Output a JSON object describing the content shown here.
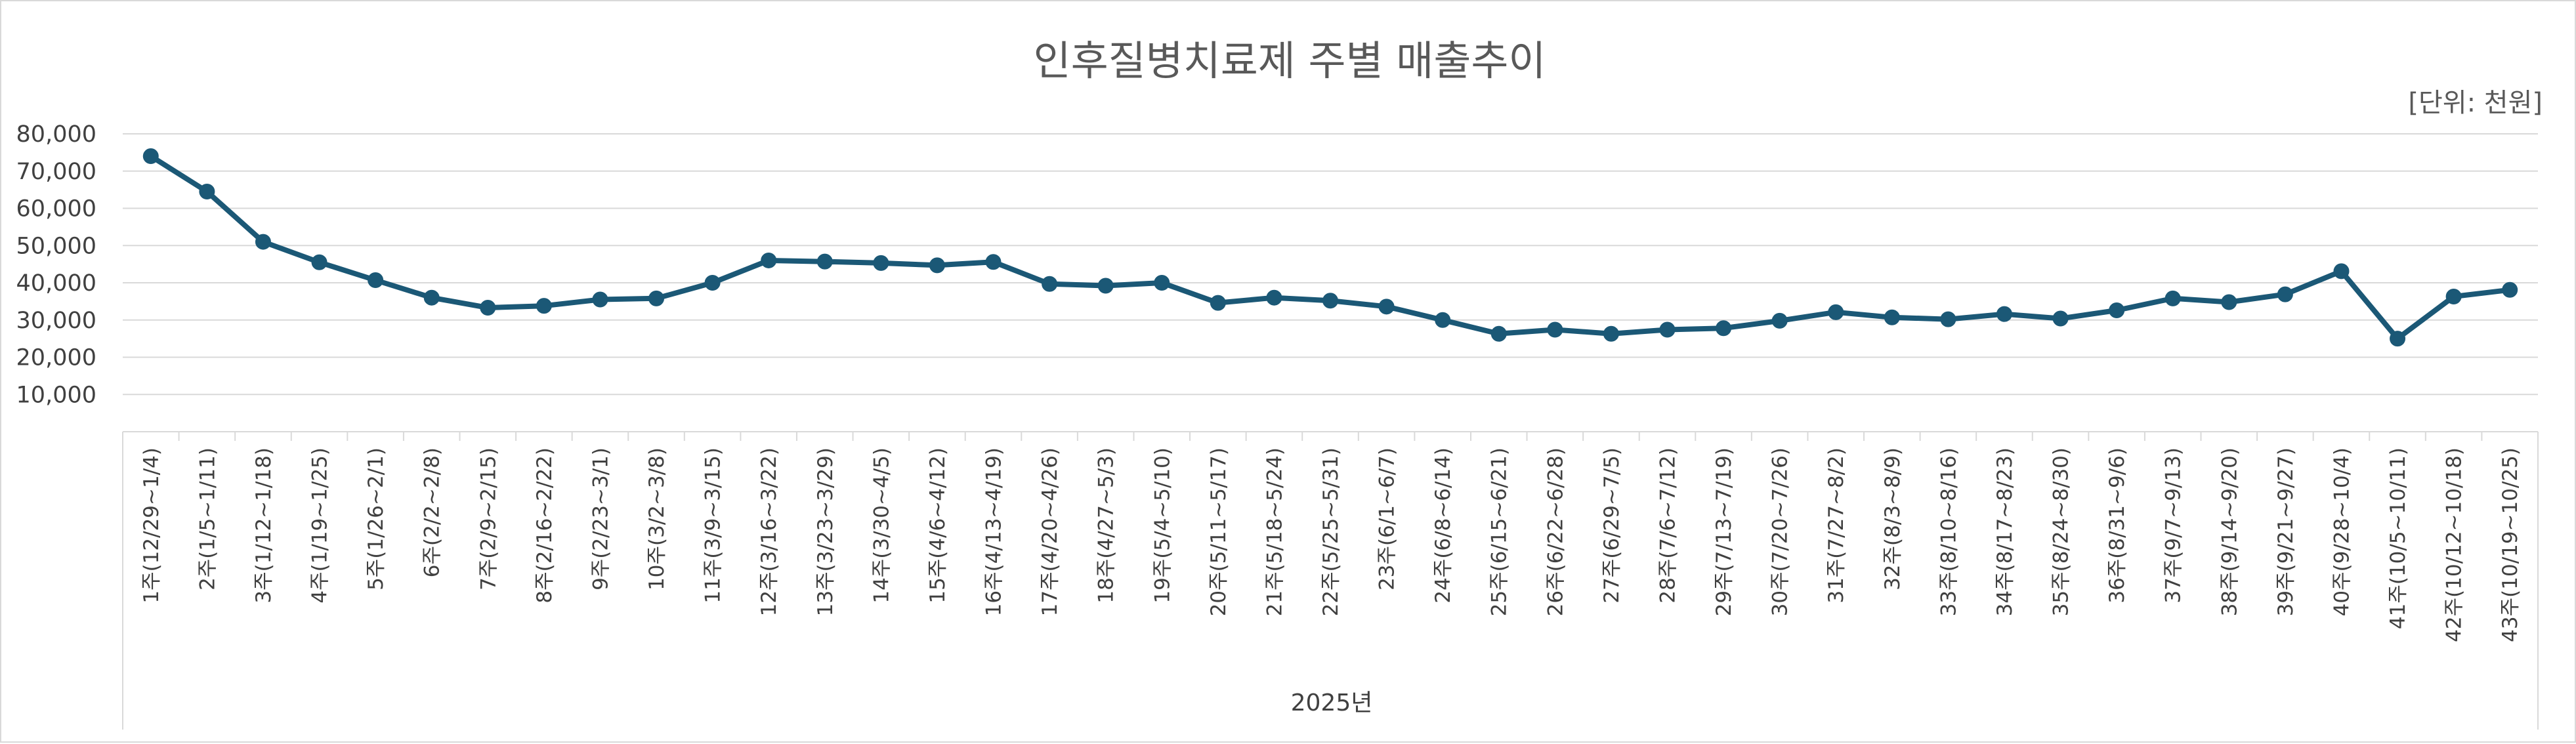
{
  "chart_data": {
    "type": "line",
    "title": "인후질병치료제 주별 매출추이",
    "unit_label": "[단위: 천원]",
    "x_group_label": "2025년",
    "ylim": [
      0,
      80000
    ],
    "yticks": [
      "10,000",
      "20,000",
      "30,000",
      "40,000",
      "50,000",
      "60,000",
      "70,000",
      "80,000"
    ],
    "ytick_values": [
      10000,
      20000,
      30000,
      40000,
      50000,
      60000,
      70000,
      80000
    ],
    "grid": true,
    "legend": "none",
    "line_color": "#1b5876",
    "categories": [
      "1주(12/29~1/4)",
      "2주(1/5~1/11)",
      "3주(1/12~1/18)",
      "4주(1/19~1/25)",
      "5주(1/26~2/1)",
      "6주(2/2~2/8)",
      "7주(2/9~2/15)",
      "8주(2/16~2/22)",
      "9주(2/23~3/1)",
      "10주(3/2~3/8)",
      "11주(3/9~3/15)",
      "12주(3/16~3/22)",
      "13주(3/23~3/29)",
      "14주(3/30~4/5)",
      "15주(4/6~4/12)",
      "16주(4/13~4/19)",
      "17주(4/20~4/26)",
      "18주(4/27~5/3)",
      "19주(5/4~5/10)",
      "20주(5/11~5/17)",
      "21주(5/18~5/24)",
      "22주(5/25~5/31)",
      "23주(6/1~6/7)",
      "24주(6/8~6/14)",
      "25주(6/15~6/21)",
      "26주(6/22~6/28)",
      "27주(6/29~7/5)",
      "28주(7/6~7/12)",
      "29주(7/13~7/19)",
      "30주(7/20~7/26)",
      "31주(7/27~8/2)",
      "32주(8/3~8/9)",
      "33주(8/10~8/16)",
      "34주(8/17~8/23)",
      "35주(8/24~8/30)",
      "36주(8/31~9/6)",
      "37주(9/7~9/13)",
      "38주(9/14~9/20)",
      "39주(9/21~9/27)",
      "40주(9/28~10/4)",
      "41주(10/5~10/11)",
      "42주(10/12~10/18)",
      "43주(10/19~10/25)"
    ],
    "series": [
      {
        "values": [
          74000,
          64500,
          51000,
          45500,
          40700,
          36000,
          33300,
          33800,
          35500,
          35800,
          40000,
          46000,
          45700,
          45300,
          44700,
          45600,
          39700,
          39200,
          40000,
          34600,
          36000,
          35200,
          33600,
          30000,
          26300,
          27400,
          26300,
          27400,
          27800,
          29800,
          32100,
          30700,
          30200,
          31600,
          30400,
          32600,
          35800,
          34800,
          36900,
          43100,
          25000,
          36300,
          38100
        ]
      }
    ]
  }
}
